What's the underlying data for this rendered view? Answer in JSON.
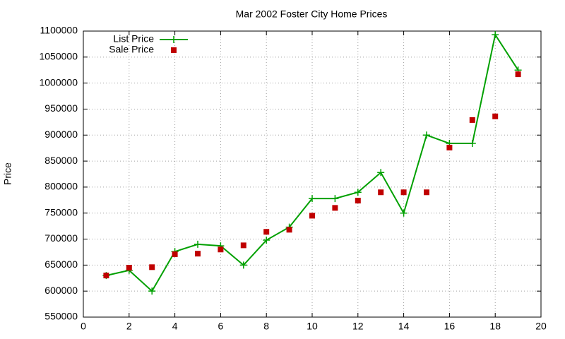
{
  "chart_data": {
    "type": "line",
    "title": "Mar 2002 Foster City Home Prices",
    "y_label": "Price",
    "x": [
      1,
      2,
      3,
      4,
      5,
      6,
      7,
      8,
      9,
      10,
      11,
      12,
      13,
      14,
      15,
      16,
      17,
      18,
      19
    ],
    "series": [
      {
        "name": "List Price",
        "color": "#00a000",
        "style": "linespoints",
        "values": [
          630000,
          640000,
          600000,
          676000,
          690000,
          687000,
          650000,
          698000,
          723000,
          778000,
          778000,
          790000,
          828000,
          750000,
          900000,
          884000,
          884000,
          1093000,
          1025000
        ]
      },
      {
        "name": "Sale Price",
        "color": "#c00000",
        "style": "points",
        "values": [
          630000,
          645000,
          646000,
          671000,
          672000,
          680000,
          688000,
          714000,
          718000,
          745000,
          760000,
          774000,
          790000,
          790000,
          790000,
          876000,
          929000,
          936000,
          1017000
        ]
      }
    ],
    "xlim": [
      0,
      20
    ],
    "xticks": [
      0,
      2,
      4,
      6,
      8,
      10,
      12,
      14,
      16,
      18,
      20
    ],
    "ylim": [
      550000,
      1100000
    ],
    "yticks": [
      550000,
      600000,
      650000,
      700000,
      750000,
      800000,
      850000,
      900000,
      950000,
      1000000,
      1050000,
      1100000
    ],
    "grid": true,
    "legend": "top-left"
  }
}
